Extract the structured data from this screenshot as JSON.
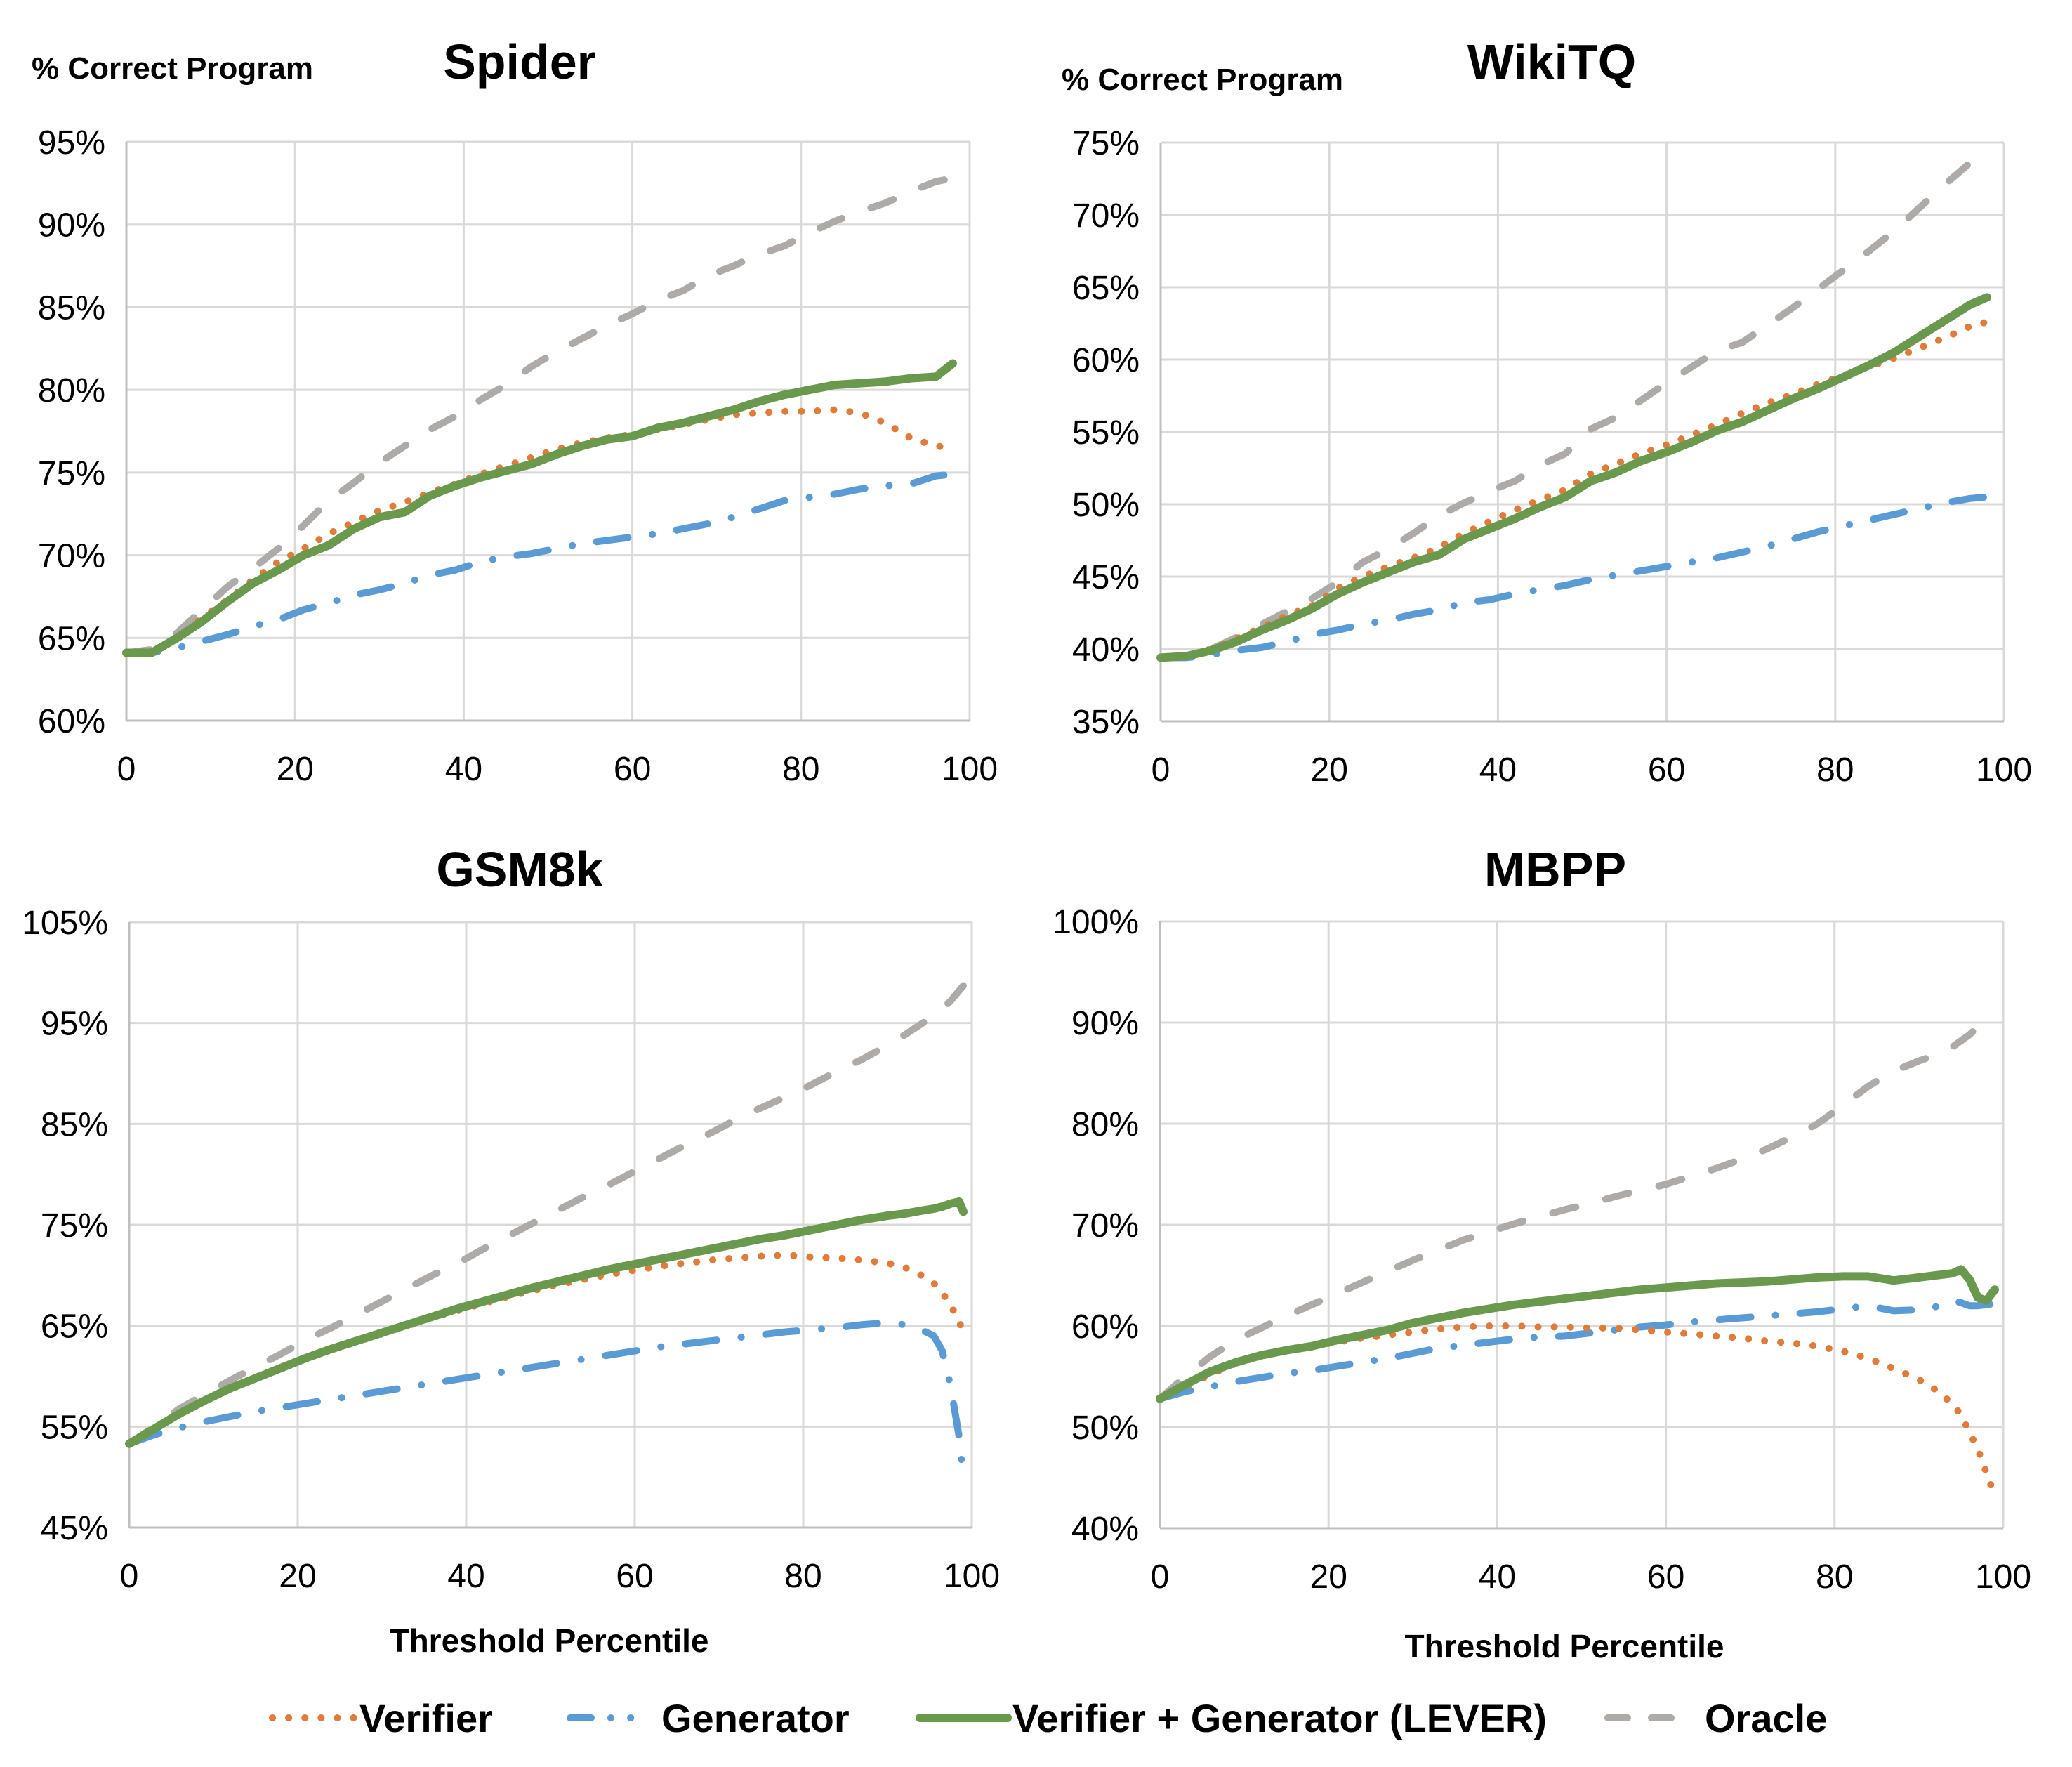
{
  "chart_data": [
    {
      "type": "line",
      "title": "Spider",
      "ylabel": "% Correct Program",
      "xlabel": "",
      "xlim": [
        0,
        100
      ],
      "ylim": [
        60,
        95
      ],
      "xticks": [
        "0",
        "20",
        "40",
        "60",
        "80",
        "100"
      ],
      "yticks": [
        "60%",
        "65%",
        "70%",
        "75%",
        "80%",
        "85%",
        "90%",
        "95%"
      ],
      "grid": true,
      "x": [
        0,
        3,
        6,
        9,
        12,
        15,
        18,
        21,
        24,
        27,
        30,
        33,
        36,
        39,
        42,
        45,
        48,
        51,
        54,
        57,
        60,
        63,
        66,
        69,
        72,
        75,
        78,
        81,
        84,
        87,
        90,
        93,
        96,
        98
      ],
      "series": [
        {
          "name": "Verifier",
          "values": [
            64.1,
            64.2,
            65.0,
            66.2,
            67.3,
            68.5,
            69.6,
            70.4,
            71.3,
            72.0,
            72.7,
            73.2,
            73.8,
            74.3,
            74.9,
            75.4,
            75.9,
            76.4,
            76.8,
            77.1,
            77.3,
            77.6,
            77.9,
            78.2,
            78.5,
            78.6,
            78.7,
            78.7,
            78.8,
            78.6,
            78.0,
            77.1,
            76.6,
            76.5
          ]
        },
        {
          "name": "Generator",
          "values": [
            64.1,
            64.1,
            64.4,
            64.8,
            65.2,
            65.7,
            66.1,
            66.7,
            67.1,
            67.6,
            67.9,
            68.3,
            68.8,
            69.1,
            69.6,
            69.9,
            70.1,
            70.4,
            70.7,
            70.9,
            71.1,
            71.3,
            71.6,
            71.9,
            72.3,
            72.8,
            73.3,
            73.5,
            73.7,
            74.0,
            74.2,
            74.3,
            74.8,
            74.9
          ]
        },
        {
          "name": "Verifier + Generator (LEVER)",
          "values": [
            64.1,
            64.1,
            65.0,
            66.0,
            67.2,
            68.3,
            69.1,
            70.0,
            70.6,
            71.6,
            72.3,
            72.6,
            73.6,
            74.2,
            74.7,
            75.1,
            75.5,
            76.1,
            76.6,
            77.0,
            77.2,
            77.7,
            78.0,
            78.4,
            78.8,
            79.3,
            79.7,
            80.0,
            80.3,
            80.4,
            80.5,
            80.7,
            80.8,
            81.6
          ]
        },
        {
          "name": "Oracle",
          "values": [
            64.1,
            64.3,
            65.3,
            66.7,
            68.1,
            69.2,
            70.4,
            71.8,
            73.3,
            74.4,
            75.6,
            76.6,
            77.6,
            78.4,
            79.4,
            80.3,
            81.4,
            82.3,
            83.1,
            83.9,
            84.6,
            85.4,
            86.0,
            86.9,
            87.5,
            88.2,
            88.7,
            89.5,
            90.2,
            90.8,
            91.3,
            92.0,
            92.6,
            92.8
          ]
        }
      ]
    },
    {
      "type": "line",
      "title": "WikiTQ",
      "ylabel": "% Correct Program",
      "xlabel": "",
      "xlim": [
        0,
        100
      ],
      "ylim": [
        35,
        75
      ],
      "xticks": [
        "0",
        "20",
        "40",
        "60",
        "80",
        "100"
      ],
      "yticks": [
        "35%",
        "40%",
        "45%",
        "50%",
        "55%",
        "60%",
        "65%",
        "70%",
        "75%"
      ],
      "grid": true,
      "x": [
        0,
        3,
        6,
        9,
        12,
        15,
        18,
        21,
        24,
        27,
        30,
        33,
        36,
        39,
        42,
        45,
        48,
        51,
        54,
        57,
        60,
        63,
        66,
        69,
        72,
        75,
        78,
        81,
        84,
        87,
        90,
        93,
        96,
        98
      ],
      "series": [
        {
          "name": "Verifier",
          "values": [
            39.4,
            39.5,
            40.0,
            40.7,
            41.5,
            42.3,
            43.0,
            44.2,
            45.0,
            45.7,
            46.3,
            47.0,
            48.0,
            48.8,
            49.6,
            50.3,
            51.0,
            52.1,
            52.8,
            53.5,
            54.1,
            54.8,
            55.5,
            56.3,
            57.0,
            57.6,
            58.3,
            58.9,
            59.5,
            60.1,
            60.8,
            61.5,
            62.3,
            62.6
          ]
        },
        {
          "name": "Generator",
          "values": [
            39.4,
            39.4,
            39.6,
            39.9,
            40.1,
            40.5,
            41.0,
            41.3,
            41.7,
            42.0,
            42.4,
            42.7,
            43.2,
            43.4,
            43.8,
            44.1,
            44.4,
            44.8,
            45.1,
            45.4,
            45.7,
            46.0,
            46.3,
            46.7,
            47.1,
            47.6,
            48.1,
            48.5,
            48.9,
            49.3,
            49.7,
            50.1,
            50.4,
            50.5
          ]
        },
        {
          "name": "Verifier + Generator (LEVER)",
          "values": [
            39.4,
            39.5,
            39.9,
            40.5,
            41.3,
            42.0,
            42.8,
            43.8,
            44.6,
            45.3,
            46.0,
            46.5,
            47.6,
            48.3,
            49.0,
            49.8,
            50.5,
            51.6,
            52.2,
            53.0,
            53.6,
            54.3,
            55.1,
            55.7,
            56.5,
            57.3,
            58.0,
            58.8,
            59.6,
            60.5,
            61.6,
            62.7,
            63.8,
            64.3
          ]
        },
        {
          "name": "Oracle",
          "values": [
            39.4,
            39.5,
            40.0,
            40.8,
            41.7,
            42.6,
            43.5,
            44.6,
            46.0,
            46.9,
            48.0,
            49.2,
            50.1,
            50.9,
            51.6,
            52.7,
            53.5,
            55.2,
            56.0,
            57.2,
            58.4,
            59.5,
            60.6,
            61.2,
            62.4,
            63.6,
            64.9,
            66.2,
            67.5,
            68.9,
            70.5,
            72.1,
            73.6,
            74.5
          ]
        }
      ]
    },
    {
      "type": "line",
      "title": "GSM8k",
      "ylabel": "",
      "xlabel": "Threshold Percentile",
      "xlim": [
        0,
        100
      ],
      "ylim": [
        45,
        105
      ],
      "xticks": [
        "0",
        "20",
        "40",
        "60",
        "80",
        "100"
      ],
      "yticks": [
        "45%",
        "55%",
        "65%",
        "75%",
        "85%",
        "95%",
        "105%"
      ],
      "grid": true,
      "x": [
        0,
        3,
        6,
        9,
        12,
        15,
        18,
        21,
        24,
        27,
        30,
        33,
        36,
        39,
        42,
        45,
        48,
        51,
        54,
        57,
        60,
        63,
        66,
        69,
        72,
        75,
        78,
        81,
        84,
        87,
        90,
        92,
        94,
        95.5,
        96.5,
        97.5,
        98.5,
        99
      ],
      "series": [
        {
          "name": "Verifier",
          "values": [
            53.3,
            54.8,
            56.3,
            57.6,
            58.8,
            59.8,
            60.8,
            61.8,
            62.6,
            63.4,
            64.2,
            65.0,
            65.8,
            66.5,
            67.2,
            67.9,
            68.5,
            69.1,
            69.6,
            70.1,
            70.5,
            70.9,
            71.2,
            71.5,
            71.7,
            71.9,
            72.0,
            71.8,
            71.7,
            71.5,
            71.2,
            70.8,
            70.0,
            69.2,
            68.3,
            67.0,
            65.5,
            64.2
          ]
        },
        {
          "name": "Generator",
          "values": [
            53.3,
            54.2,
            54.9,
            55.5,
            56.0,
            56.5,
            56.9,
            57.3,
            57.7,
            58.1,
            58.5,
            58.9,
            59.3,
            59.7,
            60.1,
            60.5,
            60.9,
            61.3,
            61.7,
            62.1,
            62.5,
            62.9,
            63.2,
            63.5,
            63.8,
            64.1,
            64.4,
            64.6,
            64.8,
            65.1,
            65.3,
            65.1,
            64.6,
            64.0,
            62.5,
            59.0,
            54.0,
            49.8
          ]
        },
        {
          "name": "Verifier + Generator (LEVER)",
          "values": [
            53.3,
            54.8,
            56.3,
            57.6,
            58.8,
            59.8,
            60.8,
            61.8,
            62.7,
            63.5,
            64.3,
            65.1,
            65.9,
            66.7,
            67.4,
            68.1,
            68.8,
            69.4,
            70.0,
            70.6,
            71.1,
            71.6,
            72.1,
            72.6,
            73.1,
            73.6,
            74.0,
            74.5,
            75.0,
            75.5,
            75.9,
            76.1,
            76.4,
            76.6,
            76.8,
            77.1,
            77.3,
            76.3
          ]
        },
        {
          "name": "Oracle",
          "values": [
            53.3,
            55.0,
            56.8,
            58.2,
            59.6,
            60.9,
            62.2,
            63.6,
            64.8,
            66.1,
            67.4,
            68.7,
            70.0,
            71.2,
            72.6,
            73.9,
            75.2,
            76.5,
            77.8,
            79.0,
            80.3,
            81.6,
            82.9,
            84.1,
            85.4,
            86.6,
            87.7,
            88.9,
            90.2,
            91.4,
            92.8,
            93.8,
            94.9,
            95.7,
            96.4,
            97.2,
            98.2,
            98.7
          ]
        }
      ]
    },
    {
      "type": "line",
      "title": "MBPP",
      "ylabel": "",
      "xlabel": "Threshold Percentile",
      "xlim": [
        0,
        100
      ],
      "ylim": [
        40,
        100
      ],
      "xticks": [
        "0",
        "20",
        "40",
        "60",
        "80",
        "100"
      ],
      "yticks": [
        "40%",
        "50%",
        "60%",
        "70%",
        "80%",
        "90%",
        "100%"
      ],
      "grid": true,
      "x": [
        0,
        3,
        6,
        9,
        12,
        15,
        18,
        21,
        24,
        27,
        30,
        33,
        36,
        39,
        42,
        45,
        48,
        51,
        54,
        57,
        60,
        63,
        66,
        69,
        72,
        75,
        78,
        81,
        84,
        87,
        90,
        92,
        94,
        95,
        96,
        97,
        98,
        99
      ],
      "series": [
        {
          "name": "Verifier",
          "values": [
            52.8,
            54.0,
            55.2,
            56.3,
            57.0,
            57.6,
            58.0,
            58.4,
            58.8,
            59.1,
            59.4,
            59.7,
            59.9,
            60.0,
            60.0,
            59.9,
            59.9,
            59.8,
            59.8,
            59.6,
            59.4,
            59.2,
            59.0,
            58.8,
            58.5,
            58.3,
            58.0,
            57.5,
            56.8,
            55.8,
            54.7,
            53.7,
            52.3,
            51.2,
            49.5,
            47.8,
            45.5,
            43.2
          ]
        },
        {
          "name": "Generator",
          "values": [
            52.8,
            53.5,
            54.0,
            54.5,
            54.9,
            55.3,
            55.6,
            56.0,
            56.4,
            56.8,
            57.3,
            57.8,
            58.1,
            58.4,
            58.7,
            58.9,
            59.0,
            59.3,
            59.6,
            59.9,
            60.1,
            60.4,
            60.6,
            60.8,
            61.0,
            61.2,
            61.4,
            61.7,
            62.0,
            61.5,
            61.6,
            61.9,
            62.5,
            62.3,
            62.0,
            62.0,
            62.1,
            62.2
          ]
        },
        {
          "name": "Verifier + Generator (LEVER)",
          "values": [
            52.8,
            54.2,
            55.5,
            56.4,
            57.1,
            57.6,
            58.0,
            58.6,
            59.1,
            59.6,
            60.3,
            60.8,
            61.3,
            61.7,
            62.1,
            62.4,
            62.7,
            63.0,
            63.3,
            63.6,
            63.8,
            64.0,
            64.2,
            64.3,
            64.4,
            64.6,
            64.8,
            64.9,
            64.9,
            64.5,
            64.8,
            65.0,
            65.2,
            65.6,
            64.6,
            62.8,
            62.5,
            63.6
          ]
        },
        {
          "name": "Oracle",
          "values": [
            52.8,
            55.0,
            57.0,
            58.6,
            59.8,
            61.0,
            62.1,
            63.2,
            64.3,
            65.4,
            66.5,
            67.5,
            68.5,
            69.3,
            70.1,
            70.8,
            71.5,
            72.1,
            72.8,
            73.4,
            74.0,
            74.8,
            75.6,
            76.5,
            77.5,
            78.7,
            80.0,
            81.8,
            83.7,
            85.2,
            86.2,
            86.8,
            87.6,
            88.2,
            88.8,
            89.6,
            90.4,
            90.9
          ]
        }
      ]
    }
  ],
  "legend": {
    "placement": "bottom",
    "items": [
      {
        "label": "Verifier",
        "color": "#E07B39",
        "style": "dotted"
      },
      {
        "label": "Generator",
        "color": "#5B9BD5",
        "style": "dash-dot"
      },
      {
        "label": "Verifier + Generator (LEVER)",
        "color": "#6A994E",
        "style": "solid"
      },
      {
        "label": "Oracle",
        "color": "#ADAAA8",
        "style": "dashed"
      }
    ]
  }
}
